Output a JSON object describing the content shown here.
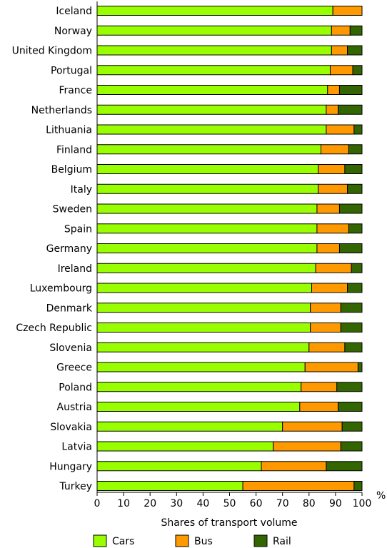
{
  "chart_data": {
    "type": "bar",
    "orientation": "horizontal",
    "stacked": true,
    "xlabel": "Shares of transport volume",
    "x_unit": "%",
    "xlim": [
      0,
      100
    ],
    "x_ticks": [
      "0",
      "10",
      "20",
      "30",
      "40",
      "50",
      "60",
      "70",
      "80",
      "90",
      "100"
    ],
    "grid": false,
    "legend_position": "bottom",
    "categories": [
      "Iceland",
      "Norway",
      "United Kingdom",
      "Portugal",
      "France",
      "Netherlands",
      "Lithuania",
      "Finland",
      "Belgium",
      "Italy",
      "Sweden",
      "Spain",
      "Germany",
      "Ireland",
      "Luxembourg",
      "Denmark",
      "Czech Republic",
      "Slovenia",
      "Greece",
      "Poland",
      "Austria",
      "Slovakia",
      "Latvia",
      "Hungary",
      "Turkey"
    ],
    "series": [
      {
        "name": "Cars",
        "color": "#99ff00",
        "values": [
          89,
          88.5,
          88.5,
          88,
          87,
          86.5,
          86.5,
          84.5,
          83.5,
          83.5,
          83,
          83,
          83,
          82.5,
          81,
          80.5,
          80.5,
          80,
          78.5,
          77,
          76.5,
          70,
          66.5,
          62,
          55
        ]
      },
      {
        "name": "Bus",
        "color": "#ff9900",
        "values": [
          11,
          7,
          6,
          8.5,
          4.5,
          4.5,
          10.5,
          10.5,
          10,
          11,
          8.5,
          12,
          8.5,
          13.5,
          13.5,
          11.5,
          11.5,
          13.5,
          20,
          13.5,
          14.5,
          22.5,
          25.5,
          24.5,
          42
        ]
      },
      {
        "name": "Rail",
        "color": "#336600",
        "values": [
          0,
          4.5,
          5.5,
          3.5,
          8.5,
          9,
          3,
          5,
          6.5,
          5.5,
          8.5,
          5,
          8.5,
          4,
          5.5,
          8,
          8,
          6.5,
          1.5,
          9.5,
          9,
          7.5,
          8,
          13.5,
          3
        ]
      }
    ]
  }
}
